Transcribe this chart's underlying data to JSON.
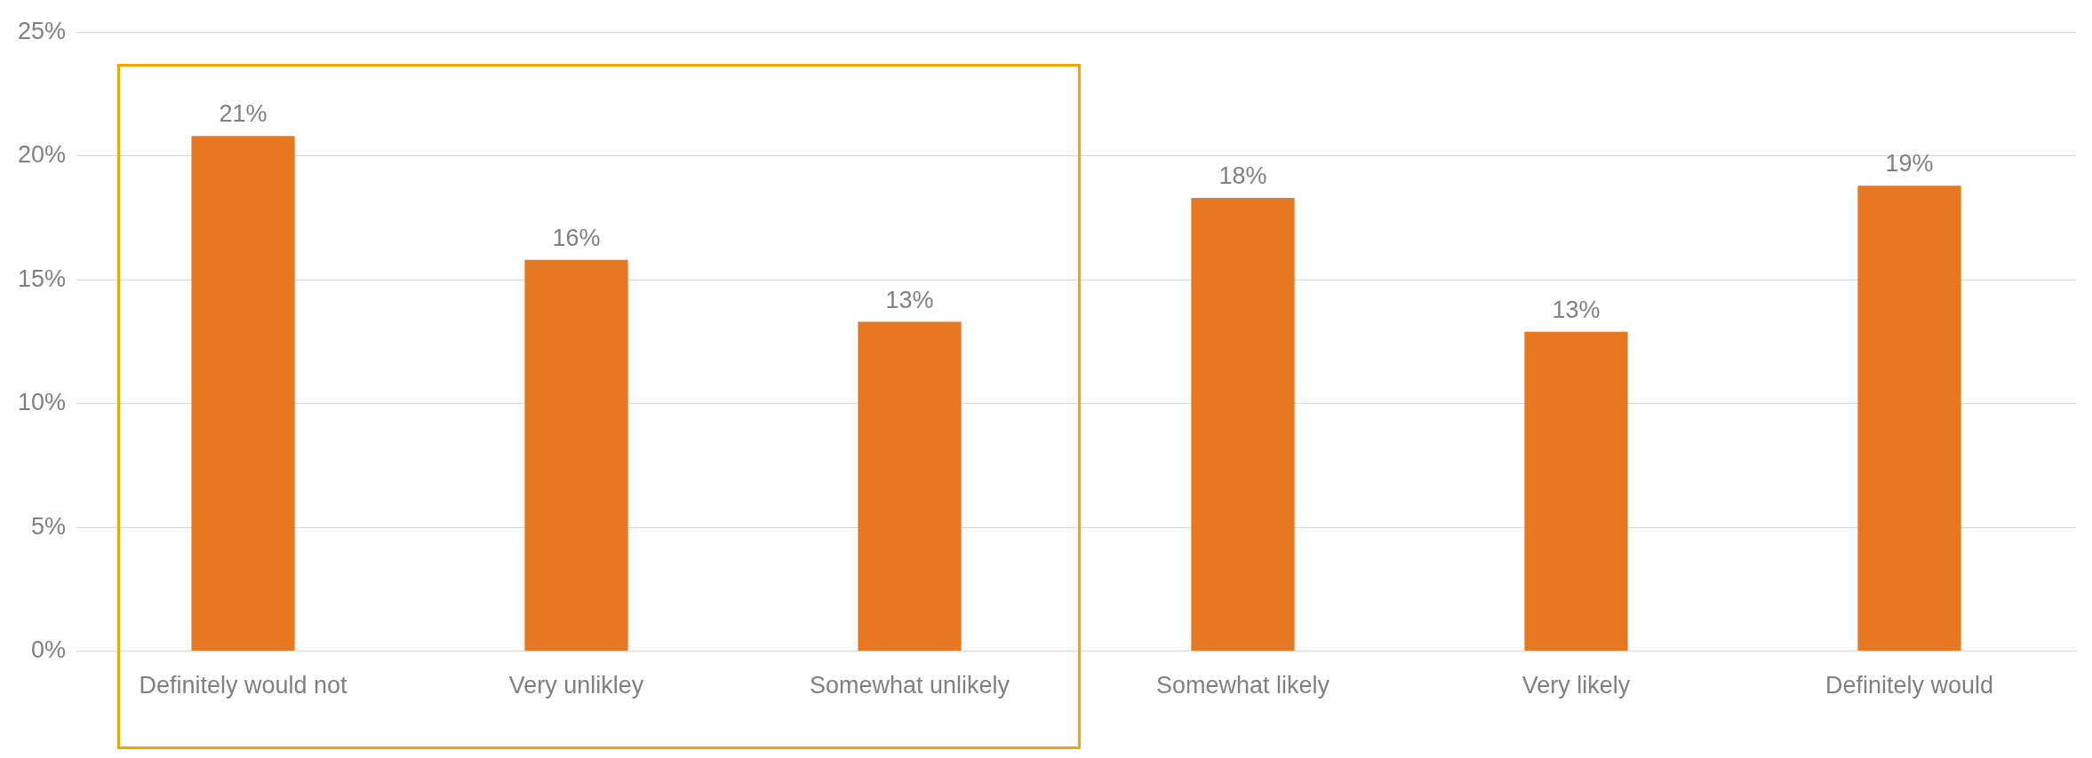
{
  "chart_data": {
    "type": "bar",
    "categories": [
      "Definitely would not",
      "Very unlikley",
      "Somewhat unlikely",
      "Somewhat likely",
      "Very likely",
      "Definitely would"
    ],
    "values": [
      20.8,
      15.8,
      13.3,
      18.3,
      12.9,
      18.8
    ],
    "value_labels": [
      "21%",
      "16%",
      "13%",
      "18%",
      "13%",
      "19%"
    ],
    "color": "#e87722",
    "ylim": [
      0,
      25
    ],
    "yticks": [
      {
        "value": 0,
        "label": "0%"
      },
      {
        "value": 5,
        "label": "5%"
      },
      {
        "value": 10,
        "label": "10%"
      },
      {
        "value": 15,
        "label": "15%"
      },
      {
        "value": 20,
        "label": "20%"
      },
      {
        "value": 25,
        "label": "25%"
      }
    ],
    "grid": "y",
    "legend": false
  }
}
